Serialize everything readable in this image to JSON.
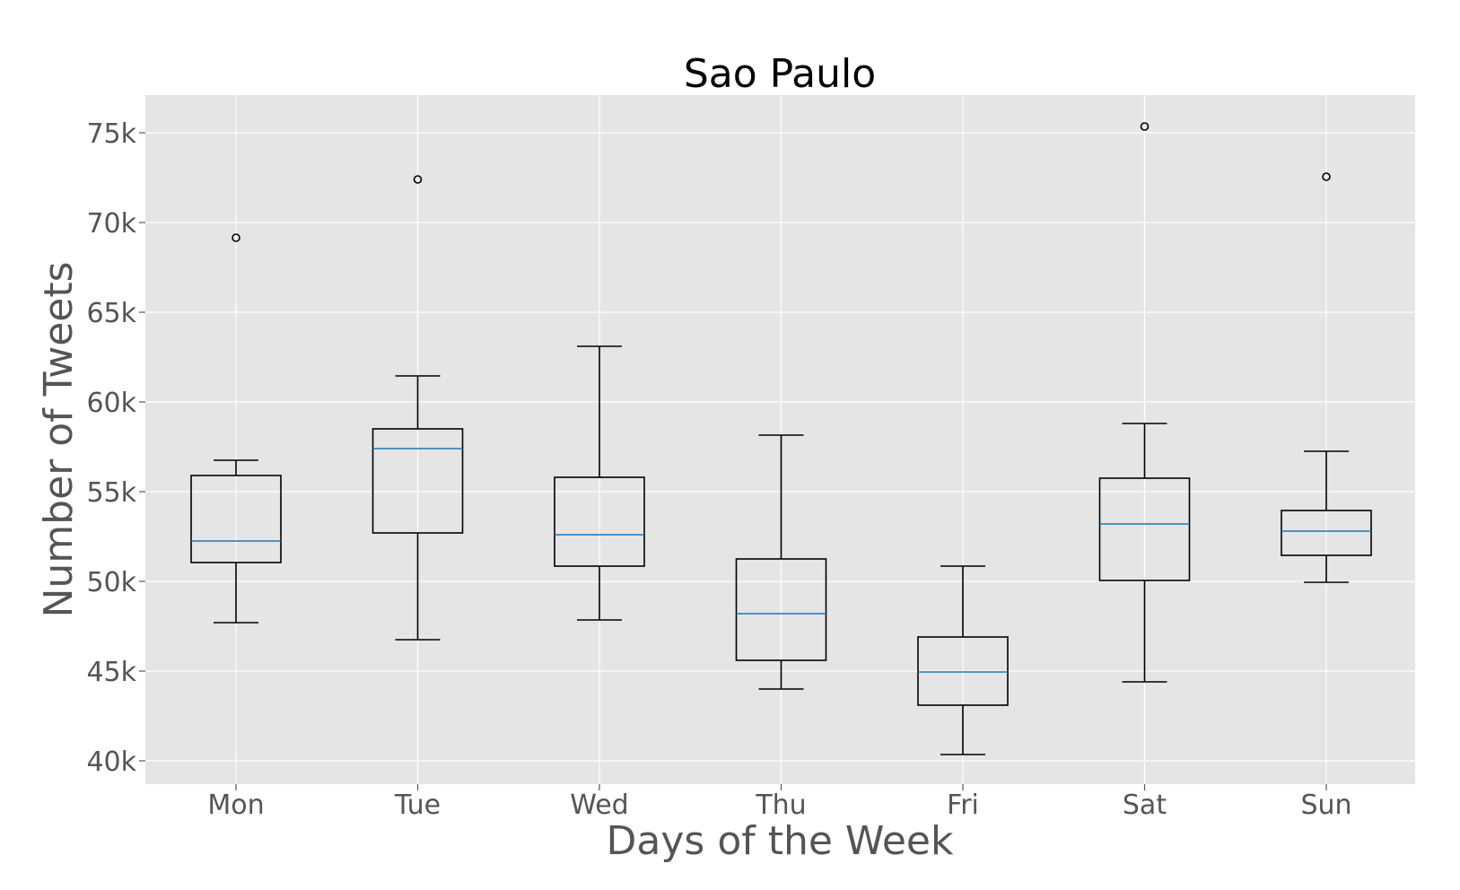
{
  "chart_data": {
    "type": "box",
    "title": "Sao Paulo",
    "xlabel": "Days of the Week",
    "ylabel": "Number of Tweets",
    "categories": [
      "Mon",
      "Tue",
      "Wed",
      "Thu",
      "Fri",
      "Sat",
      "Sun"
    ],
    "y_ticks": [
      {
        "value": 40000,
        "label": "40k"
      },
      {
        "value": 45000,
        "label": "45k"
      },
      {
        "value": 50000,
        "label": "50k"
      },
      {
        "value": 55000,
        "label": "55k"
      },
      {
        "value": 60000,
        "label": "60k"
      },
      {
        "value": 65000,
        "label": "65k"
      },
      {
        "value": 70000,
        "label": "70k"
      },
      {
        "value": 75000,
        "label": "75k"
      }
    ],
    "ylim": [
      38700,
      77100
    ],
    "grid": true,
    "boxes": [
      {
        "category": "Mon",
        "whisker_low": 47700,
        "q1": 51050,
        "median": 52250,
        "q3": 55900,
        "whisker_high": 56750,
        "outliers": [
          69150
        ]
      },
      {
        "category": "Tue",
        "whisker_low": 46750,
        "q1": 52700,
        "median": 57400,
        "q3": 58500,
        "whisker_high": 61450,
        "outliers": [
          72400
        ]
      },
      {
        "category": "Wed",
        "whisker_low": 47850,
        "q1": 50850,
        "median": 52600,
        "q3": 55800,
        "whisker_high": 63100,
        "outliers": []
      },
      {
        "category": "Thu",
        "whisker_low": 44000,
        "q1": 45600,
        "median": 48200,
        "q3": 51250,
        "whisker_high": 58150,
        "outliers": []
      },
      {
        "category": "Fri",
        "whisker_low": 40350,
        "q1": 43100,
        "median": 44950,
        "q3": 46900,
        "whisker_high": 50850,
        "outliers": []
      },
      {
        "category": "Sat",
        "whisker_low": 44400,
        "q1": 50050,
        "median": 53200,
        "q3": 55750,
        "whisker_high": 58800,
        "outliers": [
          75350
        ]
      },
      {
        "category": "Sun",
        "whisker_low": 49950,
        "q1": 51450,
        "median": 52800,
        "q3": 53950,
        "whisker_high": 57250,
        "outliers": [
          72550
        ]
      }
    ],
    "colors": {
      "background": "#e5e5e5",
      "grid": "#ffffff",
      "box": "#000000",
      "median": "#1f77b4",
      "text": "#555555",
      "title": "#000000"
    }
  }
}
